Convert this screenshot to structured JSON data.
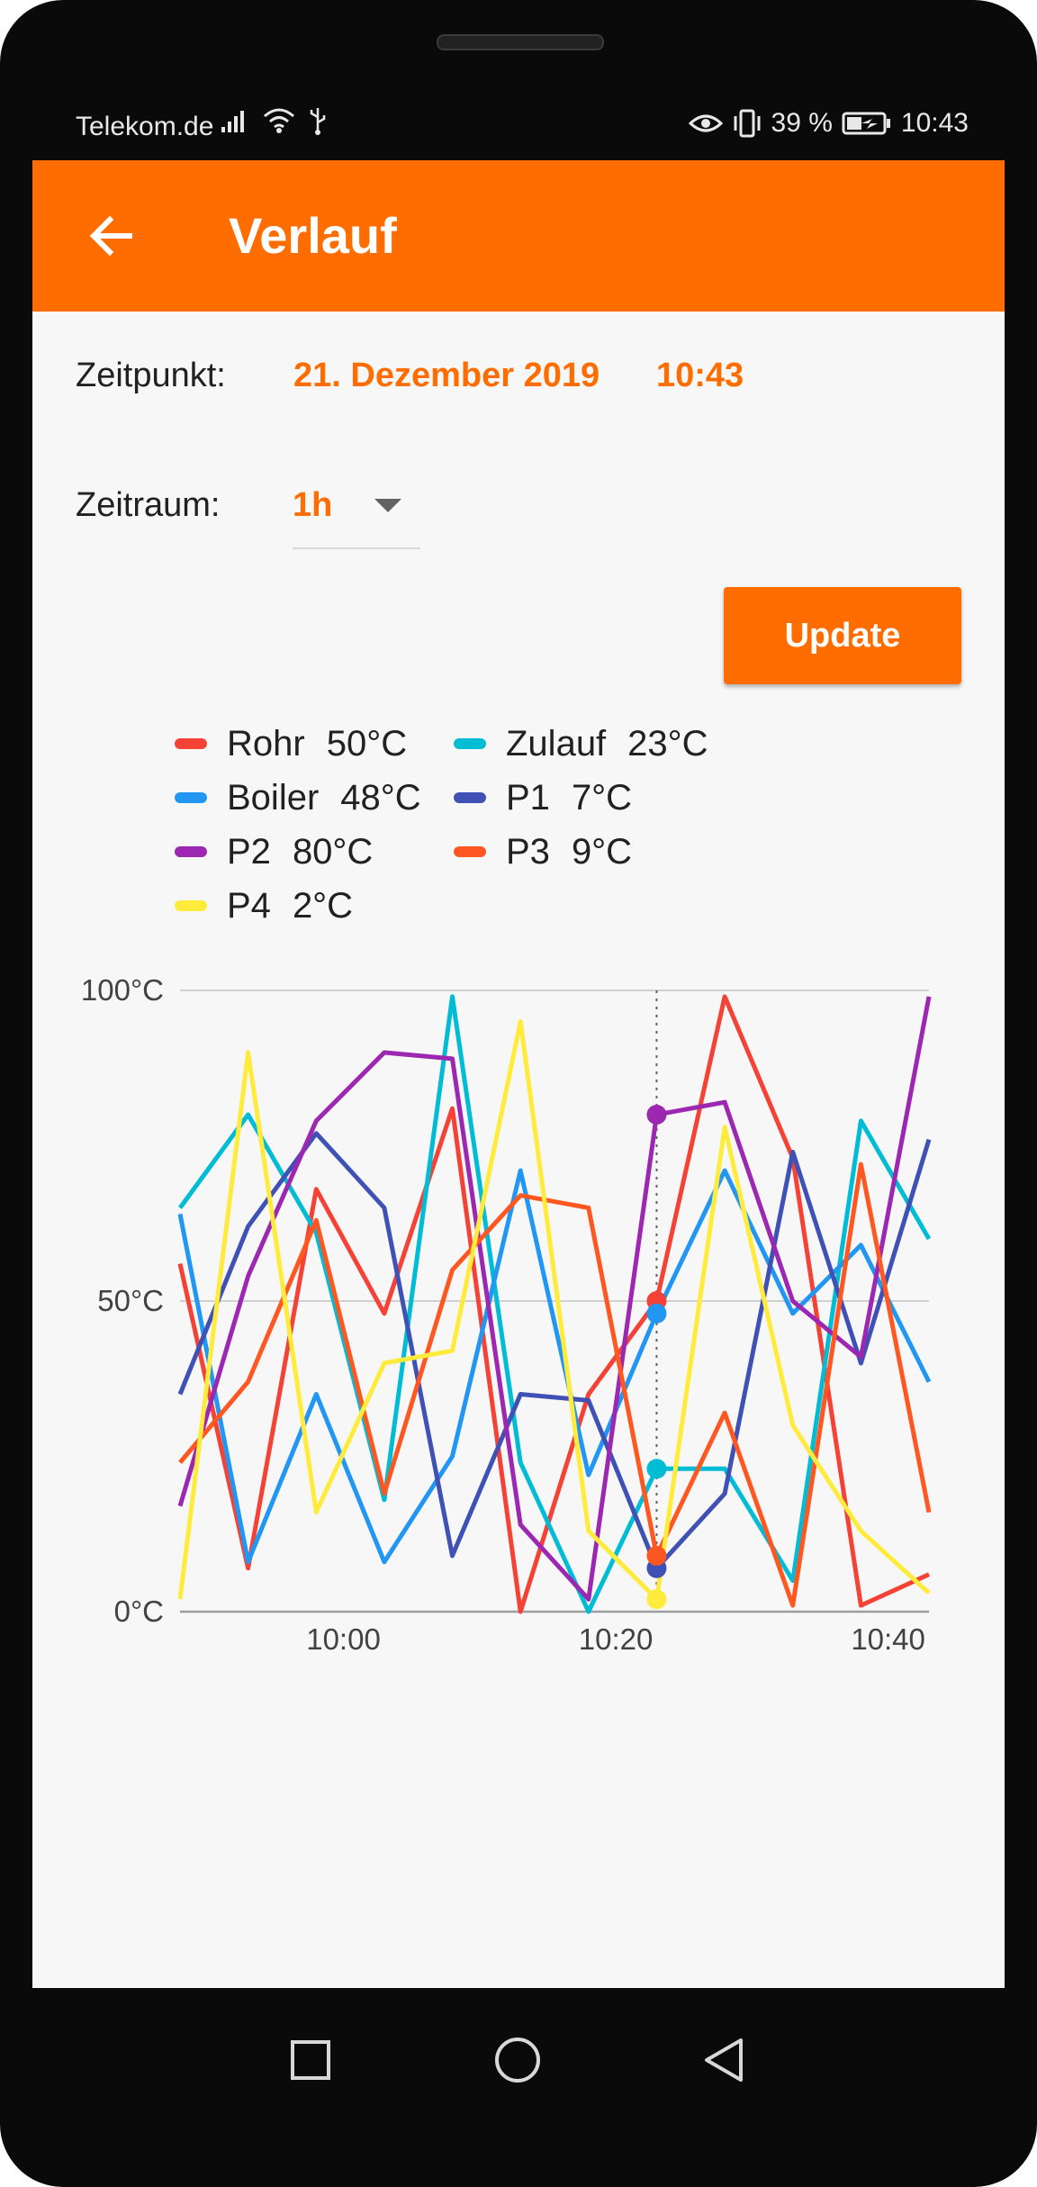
{
  "status_bar": {
    "carrier": "Telekom.de",
    "battery": "39 %",
    "time": "10:43"
  },
  "app_bar": {
    "title": "Verlauf",
    "back_icon": "arrow-back-icon"
  },
  "form": {
    "zeitpunkt_label": "Zeitpunkt:",
    "zeitpunkt_date": "21. Dezember 2019",
    "zeitpunkt_time": "10:43",
    "zeitraum_label": "Zeitraum:",
    "zeitraum_value": "1h",
    "update_label": "Update"
  },
  "colors": {
    "accent": "#ff6d00"
  },
  "legend": [
    {
      "name": "Rohr",
      "value": "50°C",
      "color": "#f44336"
    },
    {
      "name": "Zulauf",
      "value": "23°C",
      "color": "#00bcd4"
    },
    {
      "name": "Boiler",
      "value": "48°C",
      "color": "#2196f3"
    },
    {
      "name": "P1",
      "value": "7°C",
      "color": "#3f51b5"
    },
    {
      "name": "P2",
      "value": "80°C",
      "color": "#9c27b0"
    },
    {
      "name": "P3",
      "value": "9°C",
      "color": "#ff5722"
    },
    {
      "name": "P4",
      "value": "2°C",
      "color": "#ffeb3b"
    }
  ],
  "chart_data": {
    "type": "line",
    "y_ticks": [
      "100°C",
      "50°C",
      "0°C"
    ],
    "x_ticks": [
      "10:00",
      "10:20",
      "10:40"
    ],
    "ylim": [
      0,
      100
    ],
    "xlim": [
      "09:48",
      "10:43"
    ],
    "grid": true,
    "cursor_x": "10:23",
    "series": [
      {
        "name": "Rohr",
        "color": "#f44336",
        "x": [
          "09:48",
          "09:53",
          "09:58",
          "10:03",
          "10:08",
          "10:13",
          "10:18",
          "10:23",
          "10:28",
          "10:33",
          "10:38",
          "10:43"
        ],
        "y": [
          56,
          7,
          68,
          48,
          81,
          0,
          35,
          50,
          99,
          73,
          1,
          6
        ]
      },
      {
        "name": "Zulauf",
        "color": "#00bcd4",
        "x": [
          "09:48",
          "09:53",
          "09:58",
          "10:03",
          "10:08",
          "10:13",
          "10:18",
          "10:23",
          "10:28",
          "10:33",
          "10:38",
          "10:43"
        ],
        "y": [
          65,
          80,
          61,
          18,
          99,
          24,
          0,
          23,
          23,
          5,
          79,
          60
        ]
      },
      {
        "name": "Boiler",
        "color": "#2196f3",
        "x": [
          "09:48",
          "09:53",
          "09:58",
          "10:03",
          "10:08",
          "10:13",
          "10:18",
          "10:23",
          "10:28",
          "10:33",
          "10:38",
          "10:43"
        ],
        "y": [
          64,
          8,
          35,
          8,
          25,
          71,
          22,
          48,
          71,
          48,
          59,
          37
        ]
      },
      {
        "name": "P1",
        "color": "#3f51b5",
        "x": [
          "09:48",
          "09:53",
          "09:58",
          "10:03",
          "10:08",
          "10:13",
          "10:18",
          "10:23",
          "10:28",
          "10:33",
          "10:38",
          "10:43"
        ],
        "y": [
          35,
          62,
          77,
          65,
          9,
          35,
          34,
          7,
          19,
          74,
          40,
          76
        ]
      },
      {
        "name": "P2",
        "color": "#9c27b0",
        "x": [
          "09:48",
          "09:53",
          "09:58",
          "10:03",
          "10:08",
          "10:13",
          "10:18",
          "10:23",
          "10:28",
          "10:33",
          "10:38",
          "10:43"
        ],
        "y": [
          17,
          54,
          79,
          90,
          89,
          14,
          2,
          80,
          82,
          50,
          41,
          99
        ]
      },
      {
        "name": "P3",
        "color": "#ff5722",
        "x": [
          "09:48",
          "09:53",
          "09:58",
          "10:03",
          "10:08",
          "10:13",
          "10:18",
          "10:23",
          "10:28",
          "10:33",
          "10:38",
          "10:43"
        ],
        "y": [
          24,
          37,
          63,
          19,
          55,
          67,
          65,
          9,
          32,
          1,
          72,
          16
        ]
      },
      {
        "name": "P4",
        "color": "#ffeb3b",
        "x": [
          "09:48",
          "09:53",
          "09:58",
          "10:03",
          "10:08",
          "10:13",
          "10:18",
          "10:23",
          "10:28",
          "10:33",
          "10:38",
          "10:43"
        ],
        "y": [
          2,
          90,
          16,
          40,
          42,
          95,
          13,
          2,
          78,
          30,
          13,
          3
        ]
      }
    ]
  }
}
